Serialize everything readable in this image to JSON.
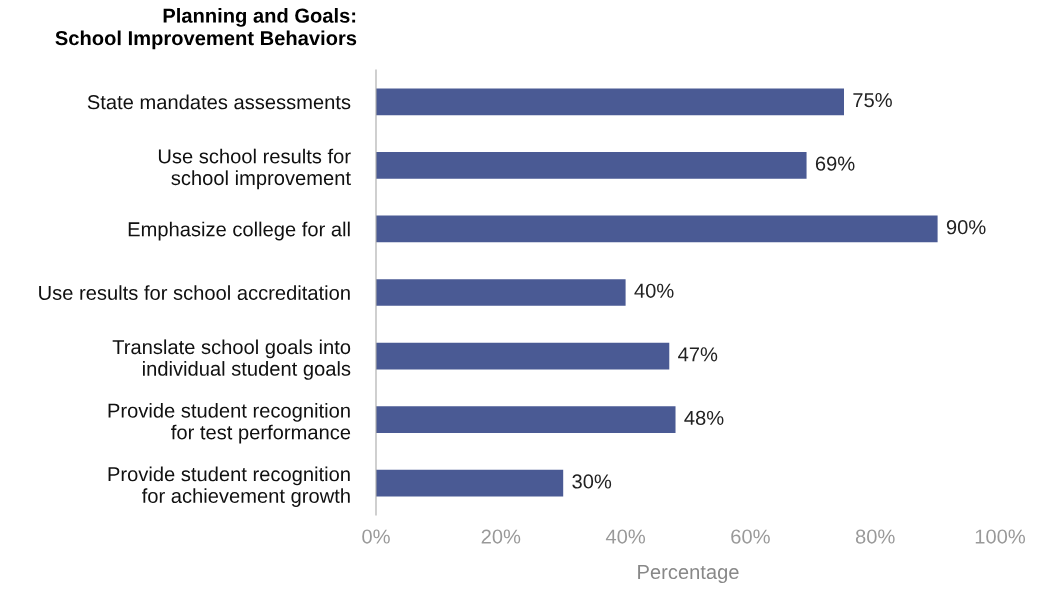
{
  "chart_data": {
    "type": "bar",
    "orientation": "horizontal",
    "title": "Planning and Goals:\nSchool Improvement Behaviors",
    "xlabel": "Percentage",
    "categories": [
      "State mandates assessments",
      "Use school results for\nschool improvement",
      "Emphasize college for all",
      "Use results for school accreditation",
      "Translate school goals into\nindividual student goals",
      "Provide student recognition\nfor test performance",
      "Provide student recognition\nfor achievement growth"
    ],
    "values": [
      75,
      69,
      90,
      40,
      47,
      48,
      30
    ],
    "value_labels": [
      "75%",
      "69%",
      "90%",
      "40%",
      "47%",
      "48%",
      "30%"
    ],
    "color": "#4a5a94",
    "xlim": [
      0,
      100
    ],
    "xticks": [
      {
        "value": 0,
        "label": "0%"
      },
      {
        "value": 20,
        "label": "20%"
      },
      {
        "value": 40,
        "label": "40%"
      },
      {
        "value": 60,
        "label": "60%"
      },
      {
        "value": 80,
        "label": "80%"
      },
      {
        "value": 100,
        "label": "100%"
      }
    ],
    "grid": false
  }
}
